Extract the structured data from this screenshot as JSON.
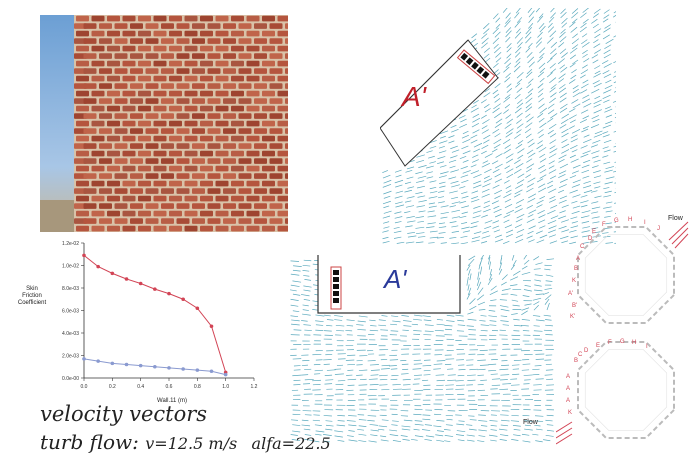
{
  "labels": {
    "region_top": "A'",
    "region_bottom": "A'",
    "flow_top": "Flow",
    "flow_bottom": "Flow",
    "flow_field_bottom": "Flow"
  },
  "caption": {
    "line1": "velocity vectors",
    "line2_prefix": "turb flow:",
    "line2_velocity": "v=12.5 m/s",
    "line2_alpha": "alfa=22.5"
  },
  "plan_labels": {
    "top": [
      "E",
      "F",
      "G",
      "H",
      "I",
      "J",
      "C",
      "D",
      "A",
      "B",
      "K",
      "A'",
      "B'",
      "K'"
    ],
    "bottom": [
      "D",
      "E",
      "F",
      "G",
      "H",
      "I",
      "B",
      "C",
      "A",
      "A",
      "A",
      "K"
    ]
  },
  "chart_data": {
    "type": "line",
    "ylabel": "Skin Friction Coefficient",
    "xlabel": "Wall.11 (m)",
    "xlim": [
      0,
      1.2
    ],
    "ylim": [
      0,
      0.012
    ],
    "x_ticks": [
      "0.0",
      "0.2",
      "0.4",
      "0.6",
      "0.8",
      "1.0",
      "1.2"
    ],
    "y_ticks": [
      "0.0e-00",
      "2.0e-03",
      "4.0e-03",
      "6.0e-03",
      "8.0e-03",
      "1.0e-02",
      "1.2e-02"
    ],
    "series": [
      {
        "color": "#d24455",
        "x": [
          0,
          0.1,
          0.2,
          0.3,
          0.4,
          0.5,
          0.6,
          0.7,
          0.8,
          0.9,
          1.0
        ],
        "y": [
          0.0109,
          0.0099,
          0.0093,
          0.0088,
          0.0084,
          0.0079,
          0.0075,
          0.007,
          0.0062,
          0.0046,
          0.0005
        ]
      },
      {
        "color": "#8a9ad0",
        "x": [
          0,
          0.1,
          0.2,
          0.3,
          0.4,
          0.5,
          0.6,
          0.7,
          0.8,
          0.9,
          1.0
        ],
        "y": [
          0.0017,
          0.0015,
          0.0013,
          0.0012,
          0.0011,
          0.001,
          0.0009,
          0.0008,
          0.0007,
          0.0006,
          0.0003
        ]
      }
    ]
  }
}
